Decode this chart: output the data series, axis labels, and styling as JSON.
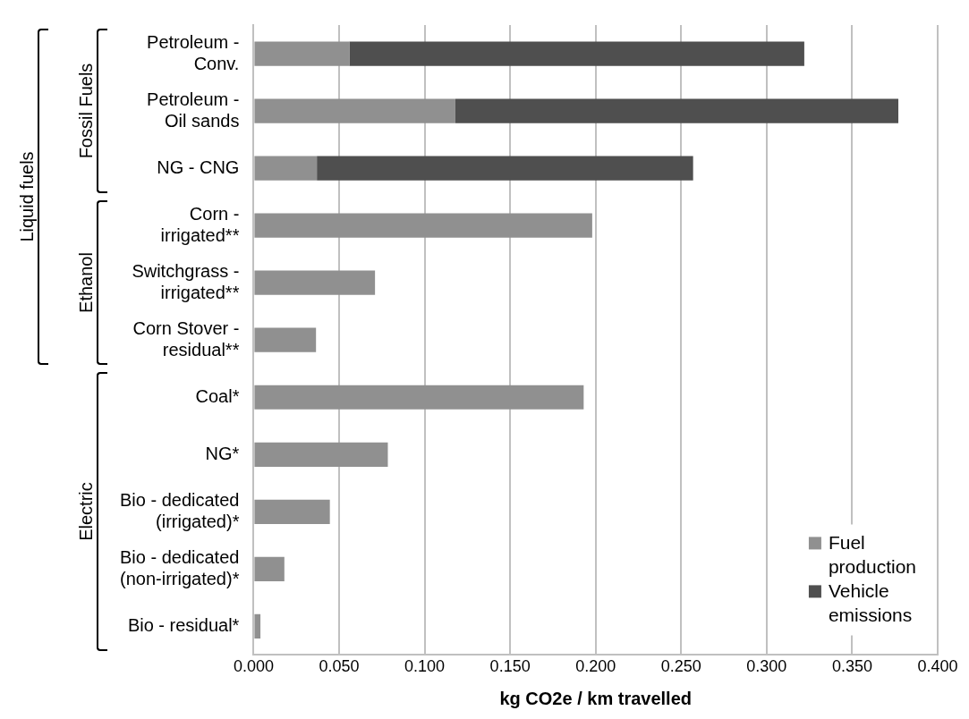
{
  "chart_data": {
    "type": "bar",
    "orientation": "horizontal",
    "stacked": true,
    "xlabel": "kg CO2e / km travelled",
    "categories": [
      "Petroleum - Conv.",
      "Petroleum - Oil sands",
      "NG - CNG",
      "Corn - irrigated**",
      "Switchgrass - irrigated**",
      "Corn Stover - residual**",
      "Coal*",
      "NG*",
      "Bio - dedicated (irrigated)*",
      "Bio - dedicated (non-irrigated)*",
      "Bio - residual*"
    ],
    "series": [
      {
        "name": "Fuel production",
        "color": "#909090",
        "values": [
          0.056,
          0.118,
          0.037,
          0.198,
          0.071,
          0.0365,
          0.193,
          0.0785,
          0.0446,
          0.018,
          0.004
        ]
      },
      {
        "name": "Vehicle emissions",
        "color": "#4f4f4f",
        "values": [
          0.266,
          0.259,
          0.22,
          null,
          null,
          null,
          null,
          null,
          null,
          null,
          null
        ]
      }
    ],
    "xlim": [
      0,
      0.4
    ],
    "xticks": [
      {
        "value": 0,
        "label": "0.000"
      },
      {
        "value": 0.05,
        "label": "0.050"
      },
      {
        "value": 0.1,
        "label": "0.100"
      },
      {
        "value": 0.15,
        "label": "0.150"
      },
      {
        "value": 0.2,
        "label": "0.200"
      },
      {
        "value": 0.25,
        "label": "0.250"
      },
      {
        "value": 0.3,
        "label": "0.300"
      },
      {
        "value": 0.35,
        "label": "0.350"
      },
      {
        "value": 0.4,
        "label": "0.400"
      }
    ],
    "grid": "x",
    "legend": "bottom right",
    "annotations": [
      "Liquid fuels",
      "Fossil Fuels",
      "Ethanol",
      "Electric"
    ]
  }
}
